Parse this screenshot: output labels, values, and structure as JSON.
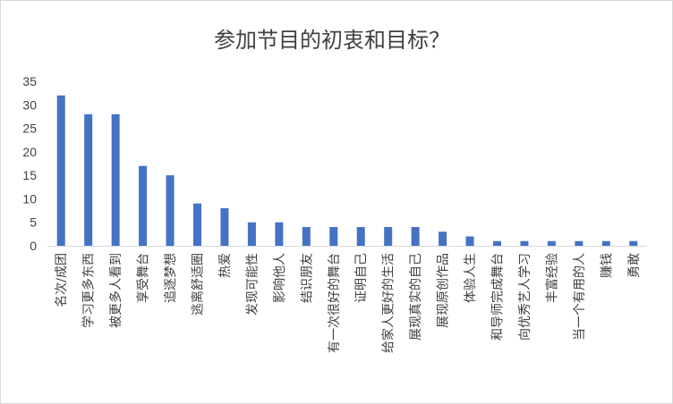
{
  "chart_data": {
    "type": "bar",
    "title": "参加节目的初衷和目标？",
    "xlabel": "",
    "ylabel": "",
    "ylim": [
      0,
      35
    ],
    "yticks": [
      0,
      5,
      10,
      15,
      20,
      25,
      30,
      35
    ],
    "grid": false,
    "legend": "none",
    "bar_color": "#4472c4",
    "categories": [
      "名次/成团",
      "学习更多东西",
      "被更多人看到",
      "享受舞台",
      "追逐梦想",
      "逃离舒适圈",
      "热爱",
      "发现可能性",
      "影响他人",
      "结识朋友",
      "有一次很好的舞台",
      "证明自己",
      "给家人更好的生活",
      "展现真实的自己",
      "展现原创作品",
      "体验人生",
      "和导师完成舞台",
      "向优秀艺人学习",
      "丰富经验",
      "当一个有用的人",
      "赚钱",
      "勇敢"
    ],
    "values": [
      32,
      28,
      28,
      17,
      15,
      9,
      8,
      5,
      5,
      4,
      4,
      4,
      4,
      4,
      3,
      2,
      1,
      1,
      1,
      1,
      1,
      1
    ]
  }
}
